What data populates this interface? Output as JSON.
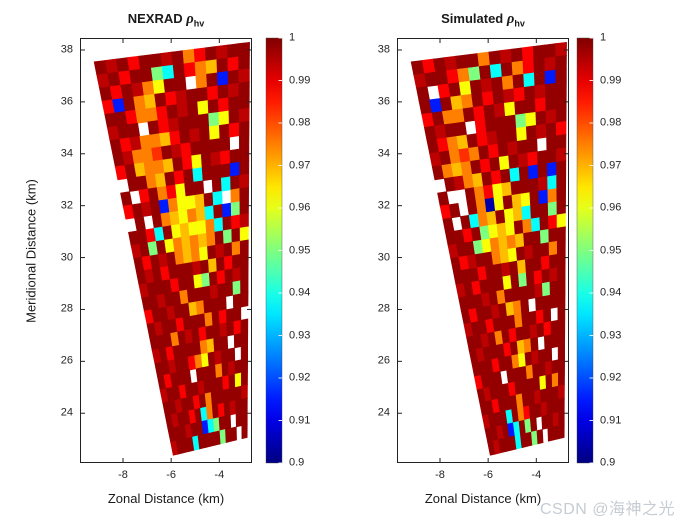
{
  "figure": {
    "background": "#ffffff"
  },
  "watermark": {
    "text": "CSDN @海神之光",
    "color": "#c6ccd3"
  },
  "chart_data": [
    {
      "type": "heatmap",
      "title": {
        "prefix": "NEXRAD ",
        "symbol": "ρ",
        "subscript": "hv"
      },
      "xlabel": "Zonal Distance (km)",
      "ylabel": "Meridional Distance (km)",
      "x_ticks": [
        "-8",
        "-6",
        "-4"
      ],
      "y_ticks": [
        "38",
        "36",
        "34",
        "32",
        "30",
        "28",
        "26",
        "24"
      ],
      "xlim": [
        -10.3,
        -2.8
      ],
      "ylim": [
        22.0,
        38.6
      ],
      "colorbar": {
        "min": 0.9,
        "max": 1,
        "colormap": "jet",
        "position": "right",
        "ticks": [
          "1",
          "0.99",
          "0.98",
          "0.97",
          "0.96",
          "0.95",
          "0.94",
          "0.93",
          "0.92",
          "0.91",
          "0.9"
        ]
      },
      "grid": {
        "cols": 14,
        "rows": 30,
        "value_codes": {
          "d": 0.998,
          "e": 0.994,
          "r": 0.988,
          "R": 0.983,
          "o": 0.975,
          "O": 0.969,
          "y": 0.962,
          "g": 0.95,
          "c": 0.938,
          "b": 0.915,
          "B": 0.904,
          "w": null
        },
        "cells": [
          "dedrddedordedd",
          "edrddgcdroOdrd",
          "drdeoyddwodbde",
          "rbdoOdreddrded",
          "ddroordedydrdd",
          "eddwdredddgyde",
          "dreooOrdedydrd",
          "deooRderddddwd",
          "rdOooOdryderdd",
          "wddoOdrdcdddbd",
          "dwrdoryddwdcde",
          "rdedboyyOdcwod",
          "wdwdoOyoOcdbgd",
          "ddrcdyOyyocdre",
          "edgdyoOoOodgdy",
          "drdedoOoydedod",
          "dedrdddedOdrdd",
          "edddrddygdrded",
          "ddeddodddeddgd",
          "rddeddOodddwdd",
          "deddrdddodrddw",
          "dddodedrddedrd",
          "edrddddoOddwdd",
          "ddeddroydeddwd",
          "drdddwdddodedd",
          "eddrddedddrdyd",
          "ddeddrdoddddde",
          "deddrdcodrdedd",
          "dddeddbcgddwdd",
          "edddcddddgddwd"
        ]
      }
    },
    {
      "type": "heatmap",
      "title": {
        "prefix": "Simulated ",
        "symbol": "ρ",
        "subscript": "hv"
      },
      "xlabel": "Zonal Distance (km)",
      "x_ticks": [
        "-8",
        "-6",
        "-4"
      ],
      "y_ticks": [
        "38",
        "36",
        "34",
        "32",
        "30",
        "28",
        "26",
        "24"
      ],
      "xlim": [
        -10.3,
        -2.8
      ],
      "ylim": [
        22.0,
        38.6
      ],
      "colorbar": {
        "min": 0.9,
        "max": 1,
        "colormap": "jet",
        "position": "right",
        "ticks": [
          "1",
          "0.99",
          "0.98",
          "0.97",
          "0.96",
          "0.95",
          "0.94",
          "0.93",
          "0.92",
          "0.91",
          "0.9"
        ]
      },
      "grid": {
        "cols": 14,
        "rows": 30,
        "value_codes": {
          "d": 0.998,
          "e": 0.994,
          "r": 0.988,
          "R": 0.983,
          "o": 0.975,
          "O": 0.969,
          "y": 0.962,
          "g": 0.95,
          "c": 0.938,
          "b": 0.915,
          "B": 0.904,
          "w": null
        },
        "cells": [
          "drdeddodedrdde",
          "eddrogdcdorded",
          "dwrdydedodcdbd",
          "dbdOodrderdedd",
          "rdoodrdeyddrdd",
          "deddwrdddgyded",
          "droOdreddydedr",
          "edoRodrdeddwdd",
          "doOodrdyderdde",
          "wdeoOdrdcdbdbd",
          "dwwdoryOdddecd",
          "rdwdoBydOydbod",
          "dwdcoOdyOcddgd",
          "ddrdgyOydocdry",
          "eddgyoOoOddgdd",
          "dreddoOydeddod",
          "dddrddedOddrdd",
          "edrdddydgdrded",
          "dddedoddddegdd",
          "drddedOodwdddd",
          "eddrdddoddrdwd",
          "ddedodrddedrdd",
          "dedddrdOodwddd",
          "dddrddoydeddwd",
          "rdddwdddoddedd",
          "dedddrddddydod",
          "ddrdddoddeddde",
          "edddcdorddeddd",
          "ddedbcdgdwdded",
          "dedddcddgdwddd"
        ]
      }
    }
  ]
}
